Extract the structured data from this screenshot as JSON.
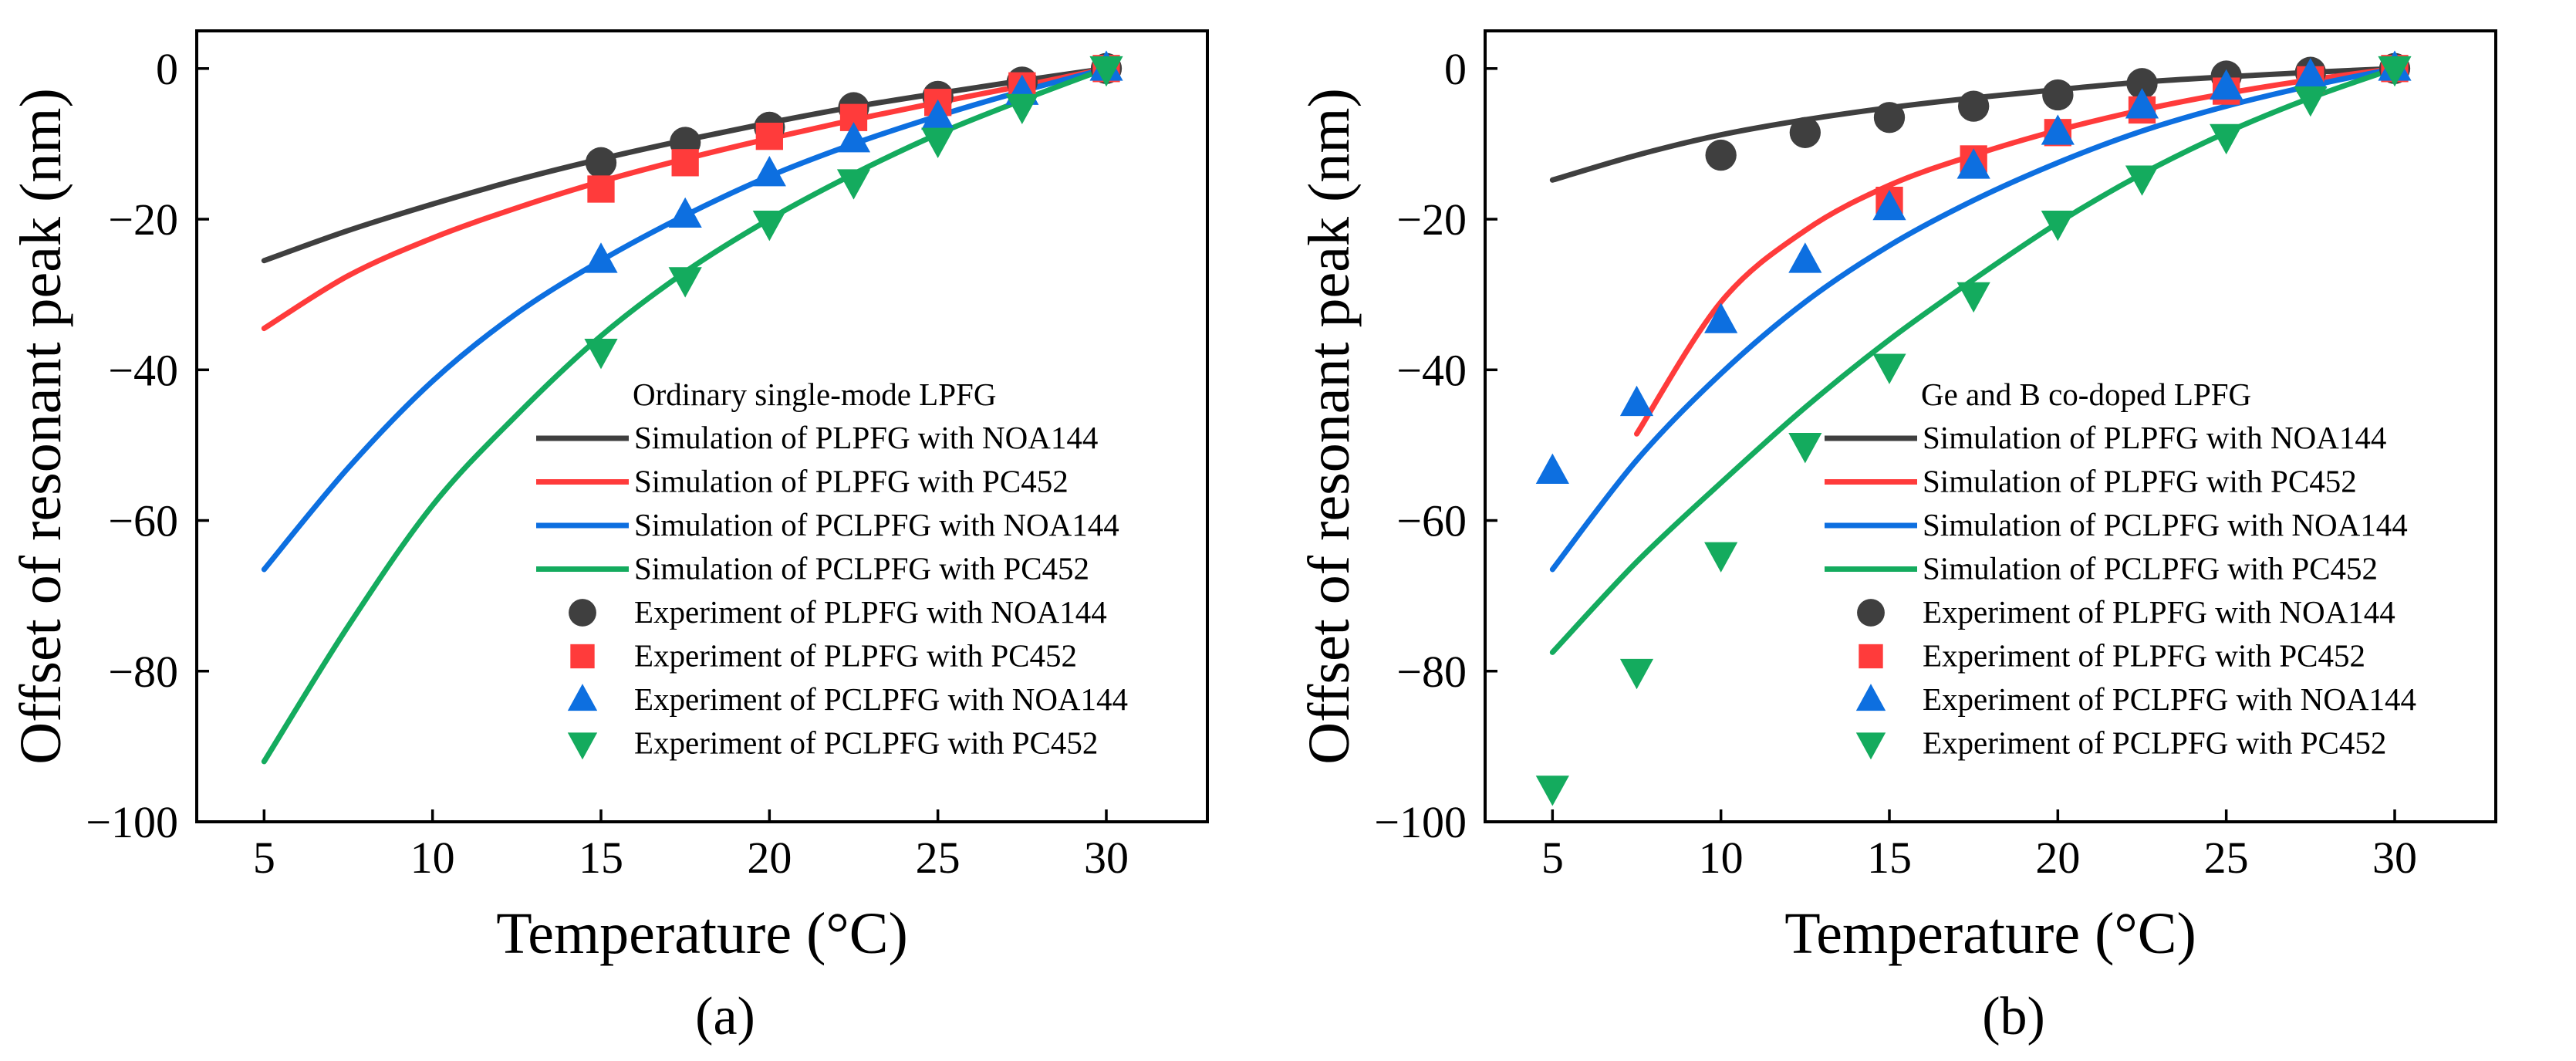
{
  "colors": {
    "PLPFG_NOA144": "#3f3f3f",
    "PLPFG_PC452": "#ff3b3b",
    "PCLPFG_NOA144": "#0d6fe0",
    "PCLPFG_PC452": "#14ab5e"
  },
  "chart_data": [
    {
      "type": "scatter",
      "panel_label": "(a)",
      "legend_title": "Ordinary single-mode LPFG",
      "xlabel": "Temperature (°C)",
      "ylabel": "Offset of resonant peak (nm)",
      "xlim": [
        3,
        33
      ],
      "ylim": [
        -100,
        5
      ],
      "xticks": [
        5,
        10,
        15,
        20,
        25,
        30
      ],
      "yticks": [
        0,
        -20,
        -40,
        -60,
        -80,
        -100
      ],
      "xtick_labels": [
        "5",
        "10",
        "15",
        "20",
        "25",
        "30"
      ],
      "ytick_labels": [
        "0",
        "−20",
        "−40",
        "−60",
        "−80",
        "−100"
      ],
      "legend_position": "lower-right",
      "series": [
        {
          "name": "Simulation of PLPFG with NOA144",
          "kind": "line",
          "color_key": "PLPFG_NOA144",
          "x": [
            5,
            7.5,
            10,
            12.5,
            15,
            17.5,
            20,
            22.5,
            25,
            27.5,
            30
          ],
          "y": [
            -25.5,
            -21.5,
            -18,
            -14.8,
            -12,
            -9.5,
            -7.2,
            -5.1,
            -3.3,
            -1.6,
            0
          ]
        },
        {
          "name": "Simulation of PLPFG with PC452",
          "kind": "line",
          "color_key": "PLPFG_PC452",
          "x": [
            5,
            7.5,
            10,
            12.5,
            15,
            17.5,
            20,
            22.5,
            25,
            27.5,
            30
          ],
          "y": [
            -34.5,
            -27.5,
            -22.5,
            -18.5,
            -15,
            -12,
            -9.3,
            -6.8,
            -4.5,
            -2.3,
            0
          ]
        },
        {
          "name": "Simulation of PCLPFG with NOA144",
          "kind": "line",
          "color_key": "PCLPFG_NOA144",
          "x": [
            5,
            7.5,
            10,
            12.5,
            15,
            17.5,
            20,
            22.5,
            25,
            27.5,
            30
          ],
          "y": [
            -66.5,
            -53,
            -41.5,
            -32.5,
            -25.5,
            -19.5,
            -14.3,
            -10,
            -6.3,
            -3,
            0
          ]
        },
        {
          "name": "Simulation of PCLPFG with PC452",
          "kind": "line",
          "color_key": "PCLPFG_PC452",
          "x": [
            5,
            7.5,
            10,
            12.5,
            15,
            17.5,
            20,
            22.5,
            25,
            27.5,
            30
          ],
          "y": [
            -92,
            -74,
            -58,
            -46,
            -35.5,
            -27,
            -20,
            -14,
            -8.7,
            -4.2,
            0
          ]
        },
        {
          "name": "Experiment of PLPFG with NOA144",
          "kind": "marker",
          "marker": "circle",
          "color_key": "PLPFG_NOA144",
          "x": [
            15,
            17.5,
            20,
            22.5,
            25,
            27.5,
            30
          ],
          "y": [
            -12.5,
            -9.8,
            -7.8,
            -5.2,
            -3.7,
            -1.8,
            0
          ]
        },
        {
          "name": "Experiment of PLPFG with PC452",
          "kind": "marker",
          "marker": "square",
          "color_key": "PLPFG_PC452",
          "x": [
            15,
            17.5,
            20,
            22.5,
            25,
            27.5,
            30
          ],
          "y": [
            -16,
            -12.5,
            -9,
            -6.5,
            -4.5,
            -2.3,
            0
          ]
        },
        {
          "name": "Experiment of PCLPFG with NOA144",
          "kind": "marker",
          "marker": "triangle-up",
          "color_key": "PCLPFG_NOA144",
          "x": [
            15,
            17.5,
            20,
            22.5,
            25,
            27.5,
            30
          ],
          "y": [
            -25.5,
            -19.5,
            -14,
            -9.5,
            -6.5,
            -3.2,
            0
          ]
        },
        {
          "name": "Experiment of PCLPFG with PC452",
          "kind": "marker",
          "marker": "triangle-down",
          "color_key": "PCLPFG_PC452",
          "x": [
            15,
            17.5,
            20,
            22.5,
            25,
            27.5,
            30
          ],
          "y": [
            -37.5,
            -28,
            -20.5,
            -15,
            -9.5,
            -5,
            0
          ]
        }
      ]
    },
    {
      "type": "scatter",
      "panel_label": "(b)",
      "legend_title": "Ge and B co-doped LPFG",
      "xlabel": "Temperature (°C)",
      "ylabel": "Offset of resonant peak (nm)",
      "xlim": [
        3,
        33
      ],
      "ylim": [
        -100,
        5
      ],
      "xticks": [
        5,
        10,
        15,
        20,
        25,
        30
      ],
      "yticks": [
        0,
        -20,
        -40,
        -60,
        -80,
        -100
      ],
      "xtick_labels": [
        "5",
        "10",
        "15",
        "20",
        "25",
        "30"
      ],
      "ytick_labels": [
        "0",
        "−20",
        "−40",
        "−60",
        "−80",
        "−100"
      ],
      "legend_position": "lower-right",
      "series": [
        {
          "name": "Simulation of PLPFG with NOA144",
          "kind": "line",
          "color_key": "PLPFG_NOA144",
          "x": [
            5,
            7.5,
            10,
            12.5,
            15,
            17.5,
            20,
            22.5,
            25,
            27.5,
            30
          ],
          "y": [
            -14.8,
            -11.5,
            -8.8,
            -6.8,
            -5.2,
            -3.9,
            -2.8,
            -1.8,
            -1.1,
            -0.5,
            0
          ]
        },
        {
          "name": "Simulation of PLPFG with PC452",
          "kind": "line",
          "color_key": "PLPFG_PC452",
          "x": [
            7.5,
            10,
            12.5,
            15,
            17.5,
            20,
            22.5,
            25,
            27.5,
            30
          ],
          "y": [
            -48.5,
            -31,
            -21.5,
            -15.5,
            -11.5,
            -8.2,
            -5.5,
            -3.3,
            -1.5,
            0
          ]
        },
        {
          "name": "Simulation of PCLPFG with NOA144",
          "kind": "line",
          "color_key": "PCLPFG_NOA144",
          "x": [
            5,
            7.5,
            10,
            12.5,
            15,
            17.5,
            20,
            22.5,
            25,
            27.5,
            30
          ],
          "y": [
            -66.5,
            -52,
            -40.5,
            -31,
            -23.5,
            -17.5,
            -12.5,
            -8.3,
            -5,
            -2.3,
            0
          ]
        },
        {
          "name": "Simulation of PCLPFG with PC452",
          "kind": "line",
          "color_key": "PCLPFG_PC452",
          "x": [
            5,
            7.5,
            10,
            12.5,
            15,
            17.5,
            20,
            22.5,
            25,
            27.5,
            30
          ],
          "y": [
            -77.5,
            -65.5,
            -55,
            -45,
            -36,
            -28,
            -20.5,
            -14,
            -8.5,
            -3.9,
            0
          ]
        },
        {
          "name": "Experiment of PLPFG with NOA144",
          "kind": "marker",
          "marker": "circle",
          "color_key": "PLPFG_NOA144",
          "x": [
            10,
            12.5,
            15,
            17.5,
            20,
            22.5,
            25,
            27.5,
            30
          ],
          "y": [
            -11.5,
            -8.5,
            -6.5,
            -5,
            -3.5,
            -2,
            -1,
            -0.5,
            0
          ]
        },
        {
          "name": "Experiment of PLPFG with PC452",
          "kind": "marker",
          "marker": "square",
          "color_key": "PLPFG_PC452",
          "x": [
            15,
            17.5,
            20,
            22.5,
            25,
            27.5,
            30
          ],
          "y": [
            -17.5,
            -12,
            -8.5,
            -5.5,
            -3,
            -1.5,
            0
          ]
        },
        {
          "name": "Experiment of PCLPFG with NOA144",
          "kind": "marker",
          "marker": "triangle-up",
          "color_key": "PCLPFG_NOA144",
          "x": [
            5,
            7.5,
            10,
            12.5,
            15,
            17.5,
            20,
            22.5,
            25,
            27.5,
            30
          ],
          "y": [
            -53.5,
            -44.5,
            -33.5,
            -25.5,
            -18.5,
            -13,
            -8.5,
            -5,
            -2.5,
            -1,
            0
          ]
        },
        {
          "name": "Experiment of PCLPFG with PC452",
          "kind": "marker",
          "marker": "triangle-down",
          "color_key": "PCLPFG_PC452",
          "x": [
            5,
            7.5,
            10,
            12.5,
            15,
            17.5,
            20,
            22.5,
            25,
            27.5,
            30
          ],
          "y": [
            -95.5,
            -80,
            -64.5,
            -50,
            -39.5,
            -30,
            -20.5,
            -14.5,
            -9,
            -4,
            0
          ]
        }
      ]
    }
  ]
}
